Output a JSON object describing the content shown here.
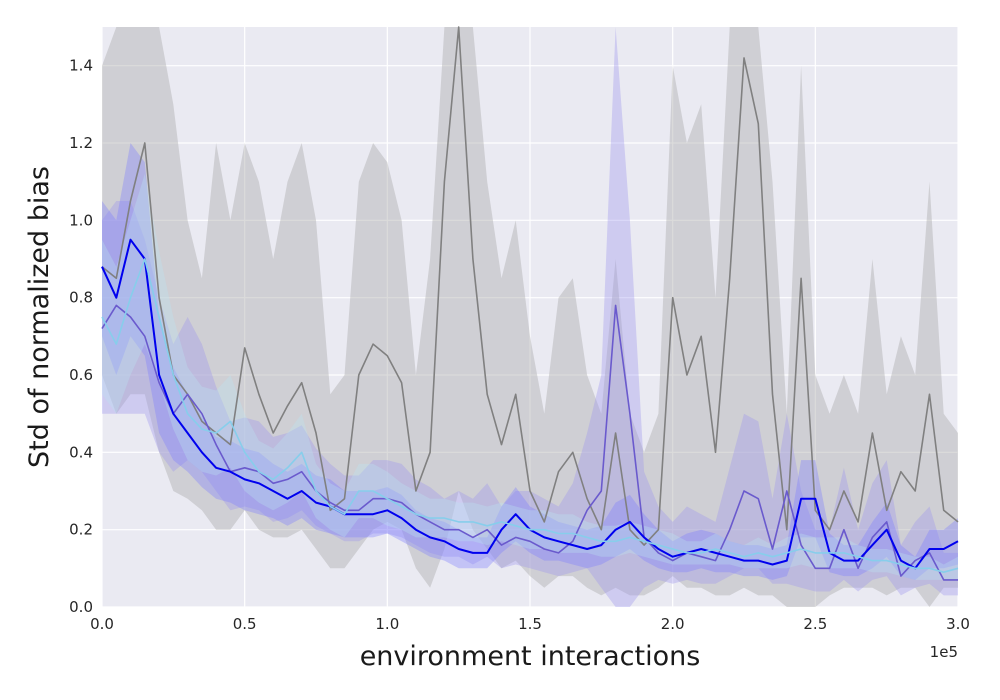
{
  "chart_data": {
    "type": "line",
    "title": "",
    "xlabel": "environment interactions",
    "ylabel": "Std of normalized bias",
    "x_offset_label": "1e5",
    "xlim": [
      0,
      3.0
    ],
    "ylim": [
      0,
      1.5
    ],
    "x_ticks": [
      "0.0",
      "0.5",
      "1.0",
      "1.5",
      "2.0",
      "2.5",
      "3.0"
    ],
    "y_ticks": [
      "0.0",
      "0.2",
      "0.4",
      "0.6",
      "0.8",
      "1.0",
      "1.2",
      "1.4"
    ],
    "grid": true,
    "legend": "none",
    "series": [
      {
        "color": "#808080",
        "band_color": "#b0b0b0",
        "x": [
          0,
          0.05,
          0.1,
          0.15,
          0.2,
          0.25,
          0.3,
          0.35,
          0.4,
          0.45,
          0.5,
          0.55,
          0.6,
          0.65,
          0.7,
          0.75,
          0.8,
          0.85,
          0.9,
          0.95,
          1.0,
          1.05,
          1.1,
          1.15,
          1.2,
          1.25,
          1.3,
          1.35,
          1.4,
          1.45,
          1.5,
          1.55,
          1.6,
          1.65,
          1.7,
          1.75,
          1.8,
          1.85,
          1.9,
          1.95,
          2.0,
          2.05,
          2.1,
          2.15,
          2.2,
          2.25,
          2.3,
          2.35,
          2.4,
          2.45,
          2.5,
          2.55,
          2.6,
          2.65,
          2.7,
          2.75,
          2.8,
          2.85,
          2.9,
          2.95,
          3.0
        ],
        "mean": [
          0.88,
          0.85,
          1.05,
          1.2,
          0.8,
          0.6,
          0.55,
          0.48,
          0.45,
          0.42,
          0.67,
          0.55,
          0.45,
          0.52,
          0.58,
          0.45,
          0.25,
          0.28,
          0.6,
          0.68,
          0.65,
          0.58,
          0.3,
          0.4,
          1.1,
          1.55,
          0.9,
          0.55,
          0.42,
          0.55,
          0.3,
          0.22,
          0.35,
          0.4,
          0.28,
          0.2,
          0.45,
          0.2,
          0.16,
          0.2,
          0.8,
          0.6,
          0.7,
          0.4,
          0.85,
          1.42,
          1.25,
          0.55,
          0.2,
          0.85,
          0.25,
          0.2,
          0.3,
          0.22,
          0.45,
          0.25,
          0.35,
          0.3,
          0.55,
          0.25,
          0.22
        ],
        "lower": [
          0.6,
          0.5,
          0.55,
          0.55,
          0.4,
          0.3,
          0.28,
          0.25,
          0.2,
          0.2,
          0.25,
          0.2,
          0.18,
          0.18,
          0.2,
          0.15,
          0.1,
          0.1,
          0.15,
          0.2,
          0.22,
          0.2,
          0.1,
          0.05,
          0.15,
          0.3,
          0.2,
          0.15,
          0.1,
          0.12,
          0.08,
          0.05,
          0.08,
          0.08,
          0.05,
          0.03,
          0.05,
          0.03,
          0.03,
          0.05,
          0.08,
          0.05,
          0.05,
          0.03,
          0.03,
          0.05,
          0.03,
          0.03,
          0.0,
          0.0,
          0.0,
          0.03,
          0.05,
          0.05,
          0.05,
          0.03,
          0.05,
          0.05,
          0.0,
          0.05,
          0.05
        ],
        "upper": [
          1.4,
          1.55,
          1.55,
          1.55,
          1.55,
          1.3,
          1.0,
          0.85,
          1.2,
          1.0,
          1.2,
          1.1,
          0.9,
          1.1,
          1.2,
          1.0,
          0.55,
          0.6,
          1.1,
          1.2,
          1.15,
          1.0,
          0.6,
          0.9,
          1.55,
          1.55,
          1.55,
          1.1,
          0.85,
          1.0,
          0.7,
          0.5,
          0.8,
          0.85,
          0.6,
          0.5,
          0.9,
          0.5,
          0.4,
          0.5,
          1.4,
          1.2,
          1.3,
          0.8,
          1.55,
          1.55,
          1.55,
          1.1,
          0.5,
          1.4,
          0.6,
          0.5,
          0.6,
          0.5,
          0.9,
          0.55,
          0.7,
          0.6,
          1.1,
          0.5,
          0.45
        ]
      },
      {
        "color": "#6a5acd",
        "band_color": "#9b91ee",
        "x": [
          0,
          0.05,
          0.1,
          0.15,
          0.2,
          0.25,
          0.3,
          0.35,
          0.4,
          0.45,
          0.5,
          0.55,
          0.6,
          0.65,
          0.7,
          0.75,
          0.8,
          0.85,
          0.9,
          0.95,
          1.0,
          1.05,
          1.1,
          1.15,
          1.2,
          1.25,
          1.3,
          1.35,
          1.4,
          1.45,
          1.5,
          1.55,
          1.6,
          1.65,
          1.7,
          1.75,
          1.8,
          1.85,
          1.9,
          1.95,
          2.0,
          2.05,
          2.1,
          2.15,
          2.2,
          2.25,
          2.3,
          2.35,
          2.4,
          2.45,
          2.5,
          2.55,
          2.6,
          2.65,
          2.7,
          2.75,
          2.8,
          2.85,
          2.9,
          2.95,
          3.0
        ],
        "mean": [
          0.72,
          0.78,
          0.75,
          0.7,
          0.58,
          0.5,
          0.55,
          0.5,
          0.42,
          0.35,
          0.36,
          0.35,
          0.32,
          0.33,
          0.35,
          0.3,
          0.27,
          0.25,
          0.25,
          0.28,
          0.28,
          0.27,
          0.24,
          0.22,
          0.2,
          0.2,
          0.18,
          0.2,
          0.16,
          0.18,
          0.17,
          0.15,
          0.14,
          0.17,
          0.25,
          0.3,
          0.78,
          0.5,
          0.18,
          0.14,
          0.12,
          0.14,
          0.13,
          0.12,
          0.2,
          0.3,
          0.28,
          0.15,
          0.3,
          0.16,
          0.1,
          0.1,
          0.2,
          0.1,
          0.18,
          0.22,
          0.08,
          0.12,
          0.14,
          0.07,
          0.07
        ],
        "lower": [
          0.5,
          0.5,
          0.5,
          0.5,
          0.4,
          0.35,
          0.38,
          0.35,
          0.3,
          0.25,
          0.26,
          0.25,
          0.22,
          0.23,
          0.25,
          0.21,
          0.19,
          0.17,
          0.17,
          0.19,
          0.19,
          0.18,
          0.16,
          0.14,
          0.13,
          0.13,
          0.11,
          0.13,
          0.1,
          0.11,
          0.1,
          0.09,
          0.08,
          0.09,
          0.1,
          0.05,
          0.0,
          0.0,
          0.05,
          0.07,
          0.06,
          0.07,
          0.06,
          0.06,
          0.08,
          0.1,
          0.1,
          0.06,
          0.06,
          0.05,
          0.04,
          0.04,
          0.07,
          0.04,
          0.07,
          0.08,
          0.03,
          0.05,
          0.06,
          0.03,
          0.03
        ],
        "upper": [
          1.0,
          1.05,
          1.05,
          0.95,
          0.8,
          0.68,
          0.75,
          0.68,
          0.57,
          0.48,
          0.49,
          0.48,
          0.44,
          0.45,
          0.47,
          0.41,
          0.37,
          0.34,
          0.34,
          0.38,
          0.38,
          0.37,
          0.33,
          0.31,
          0.28,
          0.3,
          0.28,
          0.32,
          0.26,
          0.3,
          0.3,
          0.28,
          0.26,
          0.32,
          0.45,
          0.6,
          1.55,
          1.0,
          0.35,
          0.26,
          0.22,
          0.26,
          0.24,
          0.22,
          0.36,
          0.5,
          0.48,
          0.28,
          0.5,
          0.3,
          0.2,
          0.2,
          0.36,
          0.2,
          0.32,
          0.38,
          0.16,
          0.22,
          0.26,
          0.14,
          0.14
        ]
      },
      {
        "color": "#0000ee",
        "band_color": "#7a7aff",
        "x": [
          0,
          0.05,
          0.1,
          0.15,
          0.2,
          0.25,
          0.3,
          0.35,
          0.4,
          0.45,
          0.5,
          0.55,
          0.6,
          0.65,
          0.7,
          0.75,
          0.8,
          0.85,
          0.9,
          0.95,
          1.0,
          1.05,
          1.1,
          1.15,
          1.2,
          1.25,
          1.3,
          1.35,
          1.4,
          1.45,
          1.5,
          1.55,
          1.6,
          1.65,
          1.7,
          1.75,
          1.8,
          1.85,
          1.9,
          1.95,
          2.0,
          2.05,
          2.1,
          2.15,
          2.2,
          2.25,
          2.3,
          2.35,
          2.4,
          2.45,
          2.5,
          2.55,
          2.6,
          2.65,
          2.7,
          2.75,
          2.8,
          2.85,
          2.9,
          2.95,
          3.0
        ],
        "mean": [
          0.88,
          0.8,
          0.95,
          0.9,
          0.6,
          0.5,
          0.45,
          0.4,
          0.36,
          0.35,
          0.33,
          0.32,
          0.3,
          0.28,
          0.3,
          0.27,
          0.26,
          0.24,
          0.24,
          0.24,
          0.25,
          0.23,
          0.2,
          0.18,
          0.17,
          0.15,
          0.14,
          0.14,
          0.2,
          0.24,
          0.2,
          0.18,
          0.17,
          0.16,
          0.15,
          0.16,
          0.2,
          0.22,
          0.18,
          0.15,
          0.13,
          0.14,
          0.15,
          0.14,
          0.13,
          0.12,
          0.12,
          0.11,
          0.12,
          0.28,
          0.28,
          0.14,
          0.12,
          0.12,
          0.16,
          0.2,
          0.12,
          0.1,
          0.15,
          0.15,
          0.17
        ],
        "lower": [
          0.7,
          0.6,
          0.7,
          0.65,
          0.45,
          0.38,
          0.35,
          0.31,
          0.28,
          0.27,
          0.25,
          0.24,
          0.23,
          0.21,
          0.23,
          0.2,
          0.19,
          0.18,
          0.18,
          0.18,
          0.19,
          0.17,
          0.15,
          0.13,
          0.12,
          0.1,
          0.1,
          0.1,
          0.14,
          0.17,
          0.14,
          0.12,
          0.12,
          0.11,
          0.1,
          0.11,
          0.13,
          0.15,
          0.12,
          0.1,
          0.09,
          0.09,
          0.1,
          0.09,
          0.09,
          0.08,
          0.08,
          0.07,
          0.08,
          0.18,
          0.18,
          0.09,
          0.08,
          0.08,
          0.1,
          0.13,
          0.08,
          0.07,
          0.1,
          0.1,
          0.11
        ],
        "upper": [
          1.05,
          1.0,
          1.2,
          1.15,
          0.75,
          0.62,
          0.55,
          0.49,
          0.44,
          0.43,
          0.41,
          0.4,
          0.37,
          0.35,
          0.37,
          0.34,
          0.33,
          0.3,
          0.3,
          0.3,
          0.31,
          0.29,
          0.25,
          0.23,
          0.22,
          0.2,
          0.18,
          0.18,
          0.26,
          0.31,
          0.26,
          0.24,
          0.22,
          0.21,
          0.2,
          0.21,
          0.27,
          0.29,
          0.24,
          0.2,
          0.17,
          0.19,
          0.2,
          0.19,
          0.17,
          0.16,
          0.16,
          0.15,
          0.16,
          0.38,
          0.38,
          0.19,
          0.16,
          0.16,
          0.22,
          0.27,
          0.16,
          0.13,
          0.2,
          0.2,
          0.23
        ]
      },
      {
        "color": "#87ceeb",
        "band_color": "#b9e3f2",
        "x": [
          0,
          0.05,
          0.1,
          0.15,
          0.2,
          0.25,
          0.3,
          0.35,
          0.4,
          0.45,
          0.5,
          0.55,
          0.6,
          0.65,
          0.7,
          0.75,
          0.8,
          0.85,
          0.9,
          0.95,
          1.0,
          1.05,
          1.1,
          1.15,
          1.2,
          1.25,
          1.3,
          1.35,
          1.4,
          1.45,
          1.5,
          1.55,
          1.6,
          1.65,
          1.7,
          1.75,
          1.8,
          1.85,
          1.9,
          1.95,
          2.0,
          2.05,
          2.1,
          2.15,
          2.2,
          2.25,
          2.3,
          2.35,
          2.4,
          2.45,
          2.5,
          2.55,
          2.6,
          2.65,
          2.7,
          2.75,
          2.8,
          2.85,
          2.9,
          2.95,
          3.0
        ],
        "mean": [
          0.75,
          0.68,
          0.8,
          0.9,
          0.75,
          0.6,
          0.5,
          0.46,
          0.45,
          0.48,
          0.4,
          0.35,
          0.33,
          0.36,
          0.4,
          0.3,
          0.26,
          0.24,
          0.3,
          0.3,
          0.28,
          0.26,
          0.24,
          0.23,
          0.23,
          0.22,
          0.22,
          0.21,
          0.22,
          0.21,
          0.2,
          0.2,
          0.19,
          0.19,
          0.18,
          0.17,
          0.17,
          0.18,
          0.17,
          0.16,
          0.15,
          0.14,
          0.14,
          0.15,
          0.14,
          0.13,
          0.14,
          0.13,
          0.14,
          0.15,
          0.14,
          0.14,
          0.14,
          0.13,
          0.12,
          0.12,
          0.11,
          0.1,
          0.1,
          0.09,
          0.1
        ],
        "lower": [
          0.55,
          0.5,
          0.6,
          0.68,
          0.58,
          0.46,
          0.38,
          0.35,
          0.34,
          0.36,
          0.3,
          0.27,
          0.25,
          0.27,
          0.3,
          0.23,
          0.2,
          0.18,
          0.23,
          0.23,
          0.21,
          0.2,
          0.18,
          0.18,
          0.18,
          0.17,
          0.17,
          0.16,
          0.17,
          0.16,
          0.15,
          0.15,
          0.14,
          0.14,
          0.14,
          0.13,
          0.13,
          0.14,
          0.13,
          0.12,
          0.11,
          0.11,
          0.11,
          0.11,
          0.11,
          0.1,
          0.1,
          0.1,
          0.1,
          0.11,
          0.1,
          0.1,
          0.1,
          0.1,
          0.09,
          0.09,
          0.08,
          0.07,
          0.07,
          0.07,
          0.07
        ],
        "upper": [
          0.95,
          0.88,
          1.0,
          1.12,
          0.92,
          0.75,
          0.62,
          0.57,
          0.56,
          0.6,
          0.5,
          0.43,
          0.41,
          0.45,
          0.5,
          0.37,
          0.32,
          0.3,
          0.37,
          0.37,
          0.35,
          0.32,
          0.3,
          0.28,
          0.28,
          0.27,
          0.27,
          0.26,
          0.27,
          0.26,
          0.25,
          0.25,
          0.24,
          0.24,
          0.22,
          0.21,
          0.21,
          0.22,
          0.21,
          0.2,
          0.19,
          0.17,
          0.17,
          0.19,
          0.17,
          0.16,
          0.18,
          0.16,
          0.18,
          0.19,
          0.18,
          0.18,
          0.18,
          0.16,
          0.15,
          0.15,
          0.14,
          0.13,
          0.13,
          0.11,
          0.13
        ]
      }
    ]
  }
}
